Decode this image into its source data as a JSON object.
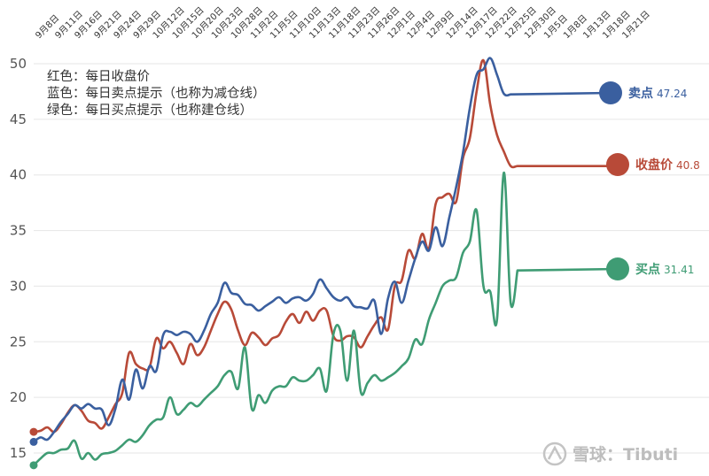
{
  "chart_data": {
    "type": "line",
    "title": "",
    "xlabel": "",
    "ylabel": "",
    "ylim": [
      14,
      51.5
    ],
    "yticks": [
      15,
      20,
      25,
      30,
      35,
      40,
      45,
      50
    ],
    "grid": "horizontal",
    "legend_position": "top-left",
    "legend_lines": [
      "红色：每日收盘价",
      "蓝色：每日卖点提示（也称为减仓线）",
      "绿色：每日买点提示（也称建仓线）"
    ],
    "x_tick_labels": [
      "9月8日",
      "9月11日",
      "9月16日",
      "9月21日",
      "9月24日",
      "9月29日",
      "10月12日",
      "10月15日",
      "10月20日",
      "10月23日",
      "10月28日",
      "11月2日",
      "11月5日",
      "11月10日",
      "11月13日",
      "11月18日",
      "11月23日",
      "11月26日",
      "12月1日",
      "12月4日",
      "12月9日",
      "12月14日",
      "12月17日",
      "12月22日",
      "12月25日",
      "12月30日",
      "1月5日",
      "1月8日",
      "1月13日",
      "1月18日",
      "1月21日"
    ],
    "x_start": 0,
    "x_end": 90,
    "series": [
      {
        "name": "收盘价",
        "end_label": "收盘价",
        "end_value": "40.8",
        "color": "#b84a38",
        "x": [
          0,
          1,
          2,
          3,
          4,
          5,
          6,
          7,
          8,
          9,
          10,
          11,
          12,
          13,
          14,
          15,
          16,
          17,
          18,
          19,
          20,
          21,
          22,
          23,
          24,
          25,
          26,
          27,
          28,
          29,
          30,
          31,
          32,
          33,
          34,
          35,
          36,
          37,
          38,
          39,
          40,
          41,
          42,
          43,
          44,
          45,
          46,
          47,
          48,
          49,
          50,
          51,
          52,
          53,
          54,
          55,
          56,
          57,
          58,
          59,
          60,
          61,
          62,
          63,
          64,
          65,
          66,
          67,
          68,
          69,
          70,
          71,
          72,
          73,
          74,
          75,
          76,
          77,
          78,
          79,
          80,
          81,
          82,
          83,
          84,
          85,
          86,
          87
        ],
        "values": [
          16.9,
          17.0,
          17.3,
          16.9,
          17.6,
          18.6,
          19.3,
          18.8,
          17.9,
          17.7,
          17.2,
          18.2,
          19.4,
          20.4,
          24.0,
          23.0,
          22.6,
          22.7,
          25.3,
          24.4,
          25.0,
          24.0,
          23.0,
          24.8,
          23.8,
          24.5,
          26.0,
          27.5,
          28.6,
          27.9,
          26.0,
          24.7,
          25.8,
          25.4,
          24.7,
          25.3,
          25.6,
          26.8,
          27.5,
          26.7,
          27.7,
          26.9,
          27.8,
          27.8,
          25.5,
          25.1,
          25.5,
          25.4,
          24.5,
          25.5,
          26.5,
          27.2,
          26.1,
          30.0,
          30.5,
          33.2,
          32.5,
          34.7,
          33.4,
          37.4,
          38.0,
          38.3,
          37.6,
          41.5,
          43.3,
          47.5,
          50.3,
          46.3,
          43.6,
          42.1,
          40.8,
          40.8,
          40.8,
          40.8,
          40.8,
          40.8,
          40.8,
          40.8,
          40.8,
          40.8,
          40.8,
          40.8,
          40.8,
          40.8,
          40.8,
          40.8,
          40.8,
          40.8
        ]
      },
      {
        "name": "卖点",
        "end_label": "卖点",
        "end_value": "47.24",
        "color": "#3a5f9f",
        "x": [
          0,
          1,
          2,
          3,
          4,
          5,
          6,
          7,
          8,
          9,
          10,
          11,
          12,
          13,
          14,
          15,
          16,
          17,
          18,
          19,
          20,
          21,
          22,
          23,
          24,
          25,
          26,
          27,
          28,
          29,
          30,
          31,
          32,
          33,
          34,
          35,
          36,
          37,
          38,
          39,
          40,
          41,
          42,
          43,
          44,
          45,
          46,
          47,
          48,
          49,
          50,
          51,
          52,
          53,
          54,
          55,
          56,
          57,
          58,
          59,
          60,
          61,
          62,
          63,
          64,
          65,
          66,
          67,
          68,
          69,
          70
        ],
        "values": [
          16.0,
          16.4,
          16.2,
          16.9,
          17.8,
          18.5,
          19.3,
          19.0,
          19.4,
          19.0,
          18.9,
          17.5,
          19.0,
          21.6,
          19.8,
          22.5,
          20.8,
          22.8,
          22.4,
          25.6,
          25.9,
          25.6,
          25.9,
          25.7,
          25.0,
          26.0,
          27.5,
          28.5,
          30.3,
          29.4,
          29.2,
          28.4,
          28.3,
          27.8,
          28.2,
          28.6,
          29.0,
          28.5,
          28.9,
          29.0,
          28.7,
          29.3,
          30.6,
          29.8,
          29.0,
          28.7,
          29.0,
          28.2,
          28.1,
          28.0,
          28.7,
          25.7,
          28.9,
          30.4,
          28.5,
          30.5,
          32.5,
          34.0,
          33.2,
          35.3,
          33.6,
          36.2,
          38.9,
          42.0,
          46.0,
          49.0,
          49.5,
          50.5,
          49.0,
          47.3,
          47.24
        ]
      },
      {
        "name": "买点",
        "end_label": "买点",
        "end_value": "31.41",
        "color": "#3f9c74",
        "x": [
          0,
          1,
          2,
          3,
          4,
          5,
          6,
          7,
          8,
          9,
          10,
          11,
          12,
          13,
          14,
          15,
          16,
          17,
          18,
          19,
          20,
          21,
          22,
          23,
          24,
          25,
          26,
          27,
          28,
          29,
          30,
          31,
          32,
          33,
          34,
          35,
          36,
          37,
          38,
          39,
          40,
          41,
          42,
          43,
          44,
          45,
          46,
          47,
          48,
          49,
          50,
          51,
          52,
          53,
          54,
          55,
          56,
          57,
          58,
          59,
          60,
          61,
          62,
          63,
          64,
          65,
          66,
          67,
          68,
          69,
          70,
          71
        ],
        "values": [
          13.9,
          14.5,
          15.0,
          15.0,
          15.3,
          15.4,
          16.1,
          14.5,
          15.0,
          14.4,
          14.9,
          15.0,
          15.2,
          15.7,
          16.2,
          16.0,
          16.6,
          17.5,
          18.0,
          18.2,
          20.0,
          18.5,
          18.9,
          19.5,
          19.2,
          19.8,
          20.4,
          21.0,
          22.0,
          22.3,
          20.8,
          24.5,
          19.0,
          20.2,
          19.5,
          20.6,
          21.0,
          21.0,
          21.8,
          21.5,
          21.5,
          22.0,
          22.6,
          20.6,
          25.7,
          26.0,
          21.5,
          26.0,
          20.5,
          21.3,
          22.0,
          21.5,
          21.8,
          22.2,
          22.8,
          23.5,
          25.2,
          24.8,
          27.0,
          28.5,
          30.0,
          30.5,
          30.8,
          33.0,
          34.0,
          36.8,
          30.0,
          29.5,
          27.0,
          40.2,
          28.5,
          31.41
        ]
      }
    ]
  },
  "watermark": {
    "text": "雪球：Tibuti"
  }
}
